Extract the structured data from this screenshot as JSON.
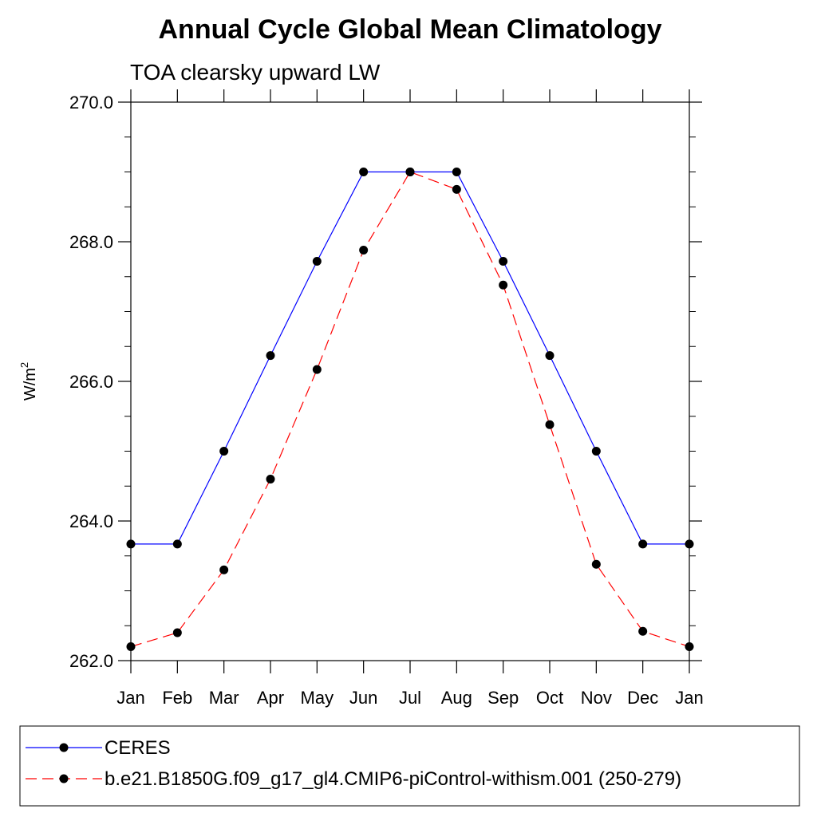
{
  "chart_data": {
    "type": "line",
    "title": "Annual Cycle Global Mean Climatology",
    "subtitle": "TOA clearsky upward LW",
    "ylabel": {
      "base": "W/m",
      "superscript": "2"
    },
    "xlabel": "",
    "categories": [
      "Jan",
      "Feb",
      "Mar",
      "Apr",
      "May",
      "Jun",
      "Jul",
      "Aug",
      "Sep",
      "Oct",
      "Nov",
      "Dec",
      "Jan"
    ],
    "ylim": [
      262.0,
      270.0
    ],
    "yticks": [
      262.0,
      264.0,
      266.0,
      268.0,
      270.0
    ],
    "ytick_labels": [
      "262.0",
      "264.0",
      "266.0",
      "268.0",
      "270.0"
    ],
    "y_minor_step": 0.5,
    "grid": false,
    "legend_position": "bottom",
    "series": [
      {
        "name": "CERES",
        "color": "#0000ff",
        "dash": "solid",
        "marker": "filled-circle",
        "values": [
          263.67,
          263.67,
          265.0,
          266.37,
          267.72,
          269.0,
          269.0,
          269.0,
          267.72,
          266.37,
          265.0,
          263.67,
          263.67
        ]
      },
      {
        "name": "b.e21.B1850G.f09_g17_gl4.CMIP6-piControl-withism.001 (250-279)",
        "color": "#ff0000",
        "dash": "dashed",
        "marker": "filled-circle",
        "values": [
          262.2,
          262.4,
          263.3,
          264.6,
          266.17,
          267.88,
          269.0,
          268.75,
          267.38,
          265.38,
          263.38,
          262.42,
          262.2
        ]
      }
    ]
  }
}
